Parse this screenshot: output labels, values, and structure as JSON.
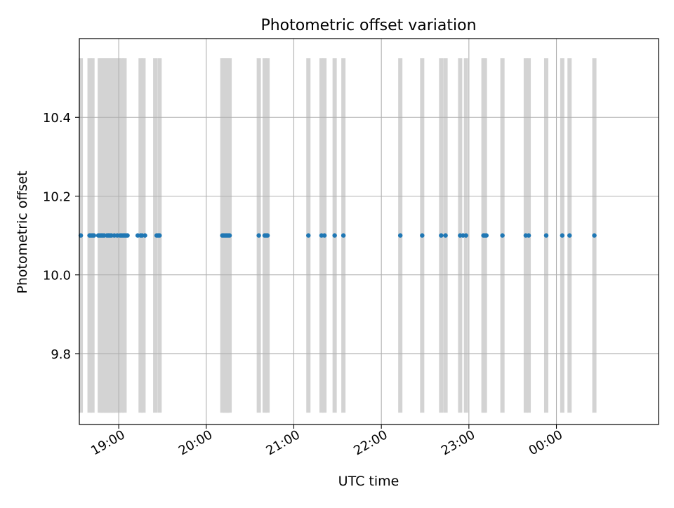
{
  "chart_data": {
    "type": "scatter",
    "title": "Photometric offset variation",
    "xlabel": "UTC time",
    "ylabel": "Photometric offset",
    "x_is_time": true,
    "xlim": [
      "18:33",
      "01:10"
    ],
    "ylim": [
      9.62,
      10.6
    ],
    "x_ticks": [
      {
        "time": "19:00",
        "label": "19:00"
      },
      {
        "time": "20:00",
        "label": "20:00"
      },
      {
        "time": "21:00",
        "label": "21:00"
      },
      {
        "time": "22:00",
        "label": "22:00"
      },
      {
        "time": "23:00",
        "label": "23:00"
      },
      {
        "time": "24:00",
        "label": "00:00"
      }
    ],
    "y_ticks": [
      {
        "value": 9.8,
        "label": "9.8"
      },
      {
        "value": 10.0,
        "label": "10.0"
      },
      {
        "value": 10.2,
        "label": "10.2"
      },
      {
        "value": 10.4,
        "label": "10.4"
      }
    ],
    "grid": true,
    "band_color": "#d3d3d3",
    "point_color": "#1f77b4",
    "bands": {
      "y_range": [
        9.65,
        10.55
      ],
      "times": [
        "18:34",
        "18:40",
        "18:42",
        "18:47",
        "18:48",
        "18:49",
        "18:50",
        "18:51",
        "18:52",
        "18:53",
        "18:54",
        "18:55",
        "18:56",
        "18:57",
        "18:58",
        "19:00",
        "19:02",
        "19:04",
        "19:15",
        "19:17",
        "19:25",
        "19:28",
        "20:11",
        "20:12",
        "20:13",
        "20:14",
        "20:15",
        "20:16",
        "20:36",
        "20:40",
        "20:42",
        "21:10",
        "21:19",
        "21:21",
        "21:28",
        "21:34",
        "22:13",
        "22:28",
        "22:41",
        "22:44",
        "22:54",
        "22:58",
        "23:10",
        "23:11",
        "23:23",
        "23:39",
        "23:41",
        "23:53",
        "24:04",
        "24:09",
        "24:26"
      ]
    },
    "series": [
      {
        "y": 10.1,
        "x": [
          "18:34",
          "18:40",
          "18:41",
          "18:42",
          "18:43",
          "18:46",
          "18:47",
          "18:48",
          "18:49",
          "18:50",
          "18:52",
          "18:53",
          "18:54",
          "18:55",
          "18:57",
          "18:59",
          "19:01",
          "19:02",
          "19:03",
          "19:04",
          "19:05",
          "19:06",
          "19:13",
          "19:15",
          "19:16",
          "19:18",
          "19:26",
          "19:27",
          "19:28",
          "20:11",
          "20:12",
          "20:13",
          "20:14",
          "20:15",
          "20:16",
          "20:36",
          "20:40",
          "20:41",
          "20:42",
          "21:10",
          "21:19",
          "21:21",
          "21:28",
          "21:34",
          "22:13",
          "22:28",
          "22:41",
          "22:44",
          "22:54",
          "22:56",
          "22:58",
          "23:10",
          "23:11",
          "23:12",
          "23:23",
          "23:39",
          "23:41",
          "23:53",
          "24:04",
          "24:09",
          "24:26"
        ]
      }
    ]
  }
}
